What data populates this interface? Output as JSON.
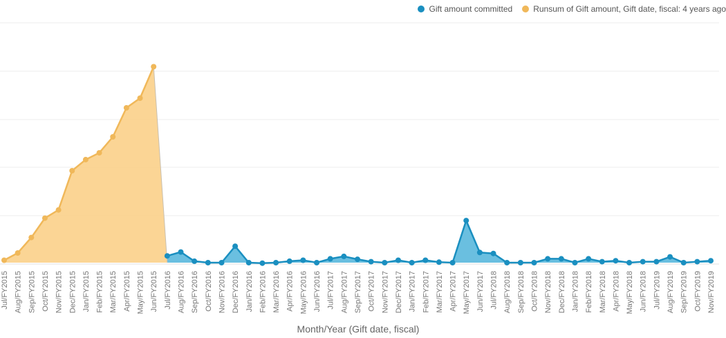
{
  "legend": {
    "committed_label": "Gift amount committed",
    "runsum_label": "Runsum of Gift amount, Gift date, fiscal: 4 years ago",
    "committed_color": "#1a8fc0",
    "runsum_color": "#f0b85a"
  },
  "chart_data": {
    "type": "area",
    "xlabel": "Month/Year (Gift date, fiscal)",
    "ylabel": "",
    "ylim": [
      0,
      5
    ],
    "grid": true,
    "legend_position": "top-right",
    "categories": [
      "Jul/FY2015",
      "Aug/FY2015",
      "Sep/FY2015",
      "Oct/FY2015",
      "Nov/FY2015",
      "Dec/FY2015",
      "Jan/FY2015",
      "Feb/FY2015",
      "Mar/FY2015",
      "Apr/FY2015",
      "May/FY2015",
      "Jun/FY2015",
      "Jul/FY2016",
      "Aug/FY2016",
      "Sep/FY2016",
      "Oct/FY2016",
      "Nov/FY2016",
      "Dec/FY2016",
      "Jan/FY2016",
      "Feb/FY2016",
      "Mar/FY2016",
      "Apr/FY2016",
      "May/FY2016",
      "Jun/FY2016",
      "Jul/FY2017",
      "Aug/FY2017",
      "Sep/FY2017",
      "Oct/FY2017",
      "Nov/FY2017",
      "Dec/FY2017",
      "Jan/FY2017",
      "Feb/FY2017",
      "Mar/FY2017",
      "Apr/FY2017",
      "May/FY2017",
      "Jun/FY2017",
      "Jul/FY2018",
      "Aug/FY2018",
      "Sep/FY2018",
      "Oct/FY2018",
      "Nov/FY2018",
      "Dec/FY2018",
      "Jan/FY2018",
      "Feb/FY2018",
      "Mar/FY2018",
      "Apr/FY2018",
      "May/FY2018",
      "Jun/FY2018",
      "Jul/FY2019",
      "Aug/FY2019",
      "Sep/FY2019",
      "Oct/FY2019",
      "Nov/FY2019"
    ],
    "series": [
      {
        "name": "Runsum of Gift amount, Gift date, fiscal: 4 years ago",
        "values": [
          0.05,
          0.2,
          0.52,
          0.92,
          1.09,
          1.9,
          2.13,
          2.27,
          2.6,
          3.2,
          3.4,
          4.05,
          null,
          null,
          null,
          null,
          null,
          null,
          null,
          null,
          null,
          null,
          null,
          null,
          null,
          null,
          null,
          null,
          null,
          null,
          null,
          null,
          null,
          null,
          null,
          null,
          null,
          null,
          null,
          null,
          null,
          null,
          null,
          null,
          null,
          null,
          null,
          null,
          null,
          null,
          null,
          null,
          null
        ]
      },
      {
        "name": "Gift amount committed",
        "values": [
          null,
          null,
          null,
          null,
          null,
          null,
          null,
          null,
          null,
          null,
          null,
          null,
          0.14,
          0.22,
          0.03,
          0.0,
          0.0,
          0.34,
          0.0,
          -0.01,
          0.0,
          0.03,
          0.05,
          0.0,
          0.08,
          0.13,
          0.07,
          0.02,
          0.0,
          0.05,
          0.0,
          0.05,
          0.01,
          0.0,
          0.87,
          0.21,
          0.19,
          0.0,
          0.0,
          0.0,
          0.08,
          0.08,
          0.0,
          0.08,
          0.02,
          0.04,
          0.0,
          0.02,
          0.02,
          0.12,
          0.0,
          0.02,
          0.04
        ]
      }
    ]
  }
}
